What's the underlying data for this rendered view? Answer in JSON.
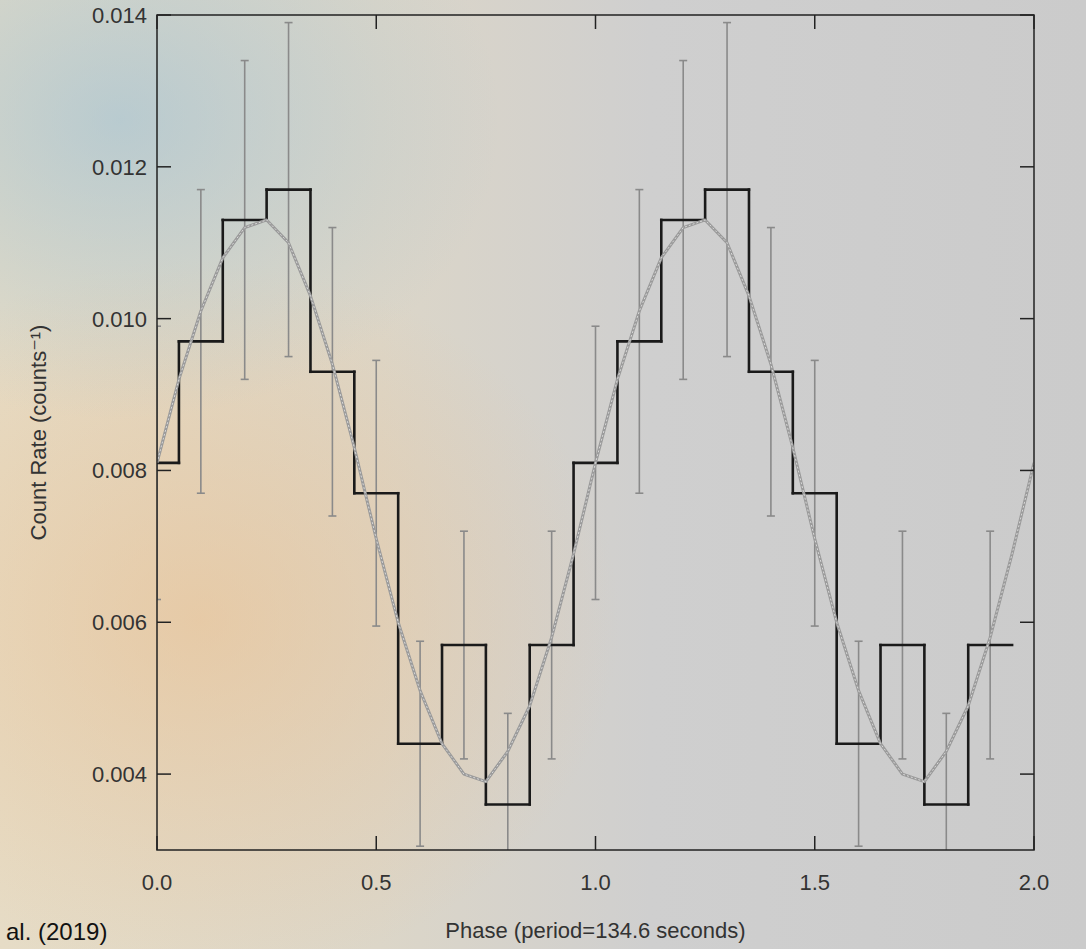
{
  "chart_data": {
    "type": "line",
    "x_label": "Phase (period=134.6 seconds)",
    "y_label": "Count Rate (counts⁻¹)",
    "annotation": "al. (2019)",
    "xlim": [
      0,
      2
    ],
    "xticks": [
      {
        "value": 0,
        "label": "0.0"
      },
      0.5,
      {
        "value": 1,
        "label": "1.0"
      },
      1.5,
      {
        "value": 2,
        "label": "2.0"
      }
    ],
    "ylim": [
      0.003,
      0.014
    ],
    "yticks": [
      0.004,
      0.006,
      0.008,
      {
        "value": 0.01,
        "label": "0.010"
      },
      0.012,
      0.014
    ],
    "grid": false,
    "series": [
      {
        "type": "step",
        "color": "#1a1a1a",
        "x": [
          0,
          0.1,
          0.2,
          0.3,
          0.4,
          0.5,
          0.6,
          0.7,
          0.8,
          0.9,
          1.0,
          1.1,
          1.2,
          1.3,
          1.4,
          1.5,
          1.6,
          1.7,
          1.8,
          1.9
        ],
        "values": [
          0.0081,
          0.0097,
          0.0113,
          0.0117,
          0.0093,
          0.0077,
          0.0044,
          0.0057,
          0.0036,
          0.0057,
          0.0081,
          0.0097,
          0.0113,
          0.0117,
          0.0093,
          0.0077,
          0.0044,
          0.0057,
          0.0036,
          0.0057
        ],
        "errors": [
          0.0018,
          0.002,
          0.0021,
          0.0022,
          0.0019,
          0.00175,
          0.00135,
          0.0015,
          0.0012,
          0.0015,
          0.0018,
          0.002,
          0.0021,
          0.0022,
          0.0019,
          0.00175,
          0.00135,
          0.0015,
          0.0012,
          0.0015
        ]
      },
      {
        "type": "line",
        "color": "#9a9a9a",
        "x": [
          0,
          0.05,
          0.1,
          0.15,
          0.2,
          0.25,
          0.3,
          0.35,
          0.4,
          0.45,
          0.5,
          0.55,
          0.6,
          0.65,
          0.7,
          0.75,
          0.8,
          0.85,
          0.9,
          0.95,
          1.0,
          1.05,
          1.1,
          1.15,
          1.2,
          1.25,
          1.3,
          1.35,
          1.4,
          1.45,
          1.5,
          1.55,
          1.6,
          1.65,
          1.7,
          1.75,
          1.8,
          1.85,
          1.9,
          1.95,
          2.0
        ],
        "values": [
          0.0081,
          0.0092,
          0.0101,
          0.0108,
          0.0112,
          0.0113,
          0.011,
          0.0103,
          0.0094,
          0.0083,
          0.0071,
          0.006,
          0.0051,
          0.0044,
          0.004,
          0.0039,
          0.0043,
          0.0049,
          0.0058,
          0.0069,
          0.0081,
          0.0092,
          0.0101,
          0.0108,
          0.0112,
          0.0113,
          0.011,
          0.0103,
          0.0094,
          0.0083,
          0.0071,
          0.006,
          0.0051,
          0.0044,
          0.004,
          0.0039,
          0.0043,
          0.0049,
          0.0058,
          0.0069,
          0.0081
        ]
      }
    ]
  }
}
